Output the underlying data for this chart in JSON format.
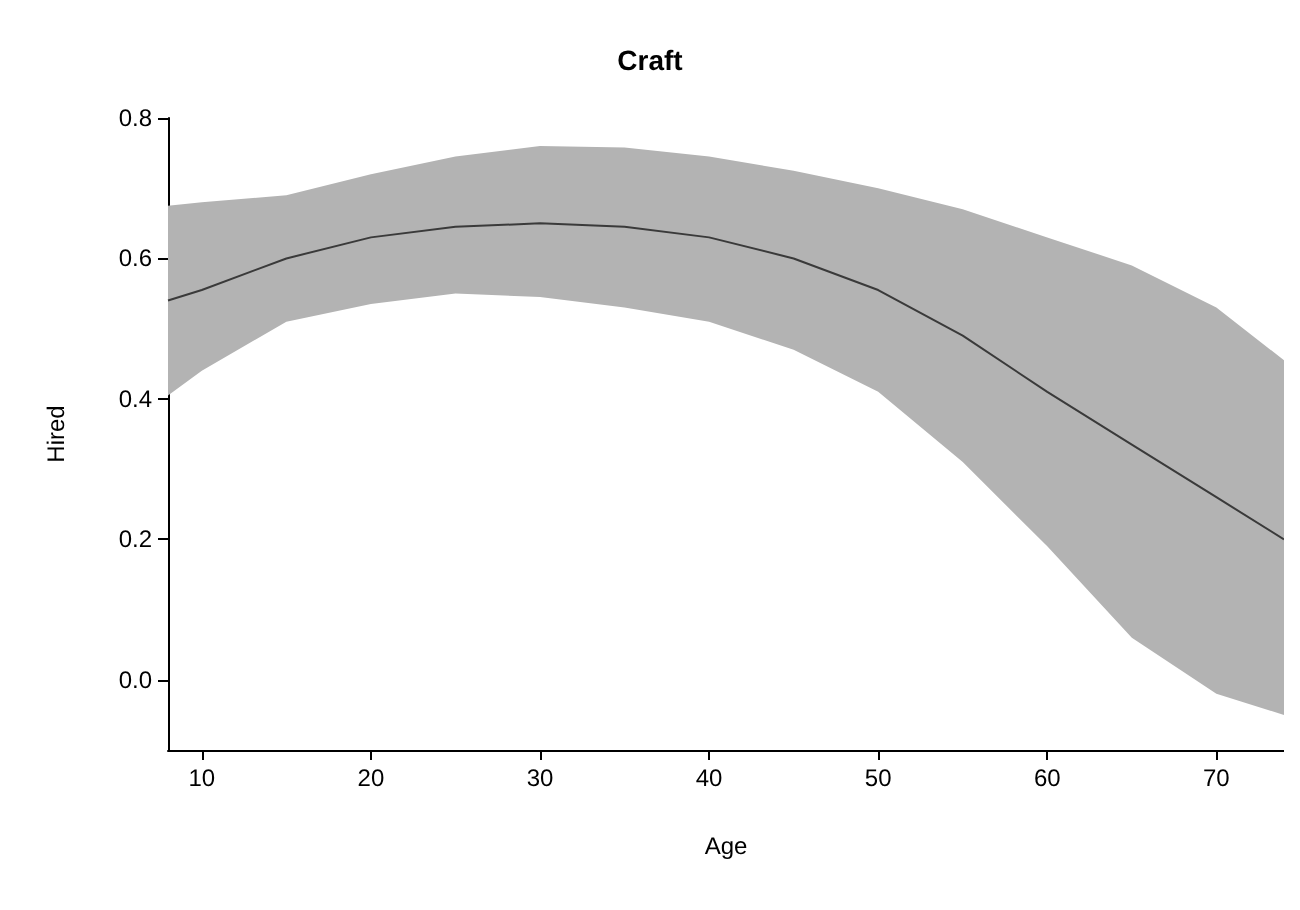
{
  "chart_data": {
    "type": "line",
    "title": "Craft",
    "xlabel": "Age",
    "ylabel": "Hired",
    "xlim": [
      8,
      74
    ],
    "xticks": [
      10,
      20,
      30,
      40,
      50,
      60,
      70
    ],
    "ylim": [
      -0.1,
      0.8
    ],
    "yticks": [
      {
        "value": 0,
        "label": "0.0"
      },
      {
        "value": 0.2,
        "label": "0.2"
      },
      {
        "value": 0.4,
        "label": "0.4"
      },
      {
        "value": 0.6,
        "label": "0.6"
      },
      {
        "value": 0.8,
        "label": "0.8"
      }
    ],
    "marker": "none",
    "line_style": "solid",
    "series": [
      {
        "color": "#3a3a3a",
        "x": [
          8,
          10,
          15,
          20,
          25,
          30,
          35,
          40,
          45,
          50,
          55,
          60,
          65,
          70,
          74
        ],
        "values": [
          0.54,
          0.555,
          0.6,
          0.63,
          0.645,
          0.65,
          0.645,
          0.63,
          0.6,
          0.555,
          0.49,
          0.41,
          0.335,
          0.26,
          0.2
        ],
        "upper": [
          0.675,
          0.68,
          0.69,
          0.72,
          0.745,
          0.76,
          0.758,
          0.745,
          0.725,
          0.7,
          0.67,
          0.63,
          0.59,
          0.53,
          0.455
        ],
        "lower": [
          0.405,
          0.44,
          0.51,
          0.535,
          0.55,
          0.545,
          0.53,
          0.51,
          0.47,
          0.41,
          0.31,
          0.19,
          0.06,
          -0.02,
          -0.05
        ]
      }
    ]
  }
}
